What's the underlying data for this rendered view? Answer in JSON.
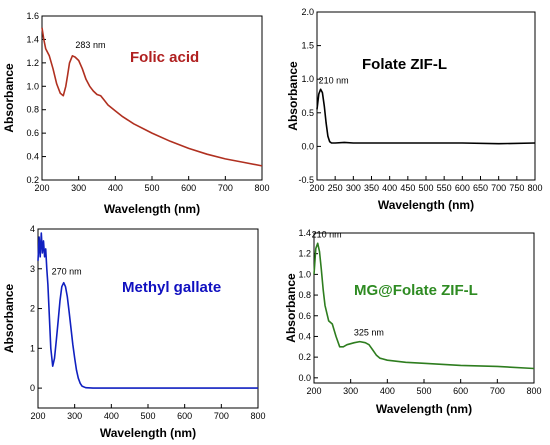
{
  "chart_data": [
    {
      "type": "line",
      "title": "Folic acid",
      "title_color": "#b02020",
      "xlabel": "Wavelength (nm)",
      "ylabel": "Absorbance",
      "xlim": [
        200,
        800
      ],
      "ylim": [
        0.2,
        1.6
      ],
      "xticks": [
        "200",
        "300",
        "400",
        "500",
        "600",
        "700",
        "800"
      ],
      "yticks": [
        "0.2",
        "0.4",
        "0.6",
        "0.8",
        "1.0",
        "1.2",
        "1.4",
        "1.6"
      ],
      "series": [
        {
          "color": "#b03020",
          "x": [
            200,
            205,
            210,
            220,
            230,
            240,
            250,
            258,
            265,
            270,
            275,
            283,
            290,
            300,
            310,
            320,
            330,
            340,
            350,
            360,
            370,
            380,
            400,
            420,
            450,
            500,
            550,
            600,
            650,
            700,
            750,
            800
          ],
          "y": [
            1.5,
            1.4,
            1.32,
            1.26,
            1.15,
            1.02,
            0.94,
            0.92,
            1.0,
            1.1,
            1.2,
            1.26,
            1.25,
            1.22,
            1.15,
            1.06,
            1.0,
            0.96,
            0.93,
            0.92,
            0.88,
            0.84,
            0.79,
            0.74,
            0.68,
            0.6,
            0.53,
            0.47,
            0.42,
            0.38,
            0.35,
            0.32
          ]
        }
      ],
      "annotations": [
        {
          "text": "283 nm",
          "x": 283,
          "y": 1.26
        }
      ]
    },
    {
      "type": "line",
      "title": "Folate ZIF-L",
      "title_color": "#000000",
      "xlabel": "Wavelength (nm)",
      "ylabel": "Absorbance",
      "xlim": [
        200,
        800
      ],
      "ylim": [
        -0.5,
        2.0
      ],
      "xticks": [
        "200",
        "250",
        "300",
        "350",
        "400",
        "450",
        "500",
        "550",
        "600",
        "650",
        "700",
        "750",
        "800"
      ],
      "yticks": [
        "-0.5",
        "0.0",
        "0.5",
        "1.0",
        "1.5",
        "2.0"
      ],
      "series": [
        {
          "color": "#000000",
          "x": [
            200,
            205,
            210,
            215,
            220,
            225,
            230,
            235,
            240,
            250,
            275,
            300,
            400,
            500,
            600,
            700,
            800
          ],
          "y": [
            0.55,
            0.78,
            0.85,
            0.8,
            0.6,
            0.35,
            0.15,
            0.07,
            0.05,
            0.05,
            0.06,
            0.05,
            0.05,
            0.05,
            0.05,
            0.04,
            0.05
          ]
        }
      ],
      "annotations": [
        {
          "text": "210 nm",
          "x": 210,
          "y": 0.85
        }
      ]
    },
    {
      "type": "line",
      "title": "Methyl gallate",
      "title_color": "#1010c0",
      "xlabel": "Wavelength (nm)",
      "ylabel": "Absorbance",
      "xlim": [
        200,
        800
      ],
      "ylim": [
        -0.5,
        4.0
      ],
      "xticks": [
        "200",
        "300",
        "400",
        "500",
        "600",
        "700",
        "800"
      ],
      "yticks": [
        "0",
        "1",
        "2",
        "3",
        "4"
      ],
      "series": [
        {
          "color": "#1020c0",
          "x": [
            200,
            203,
            206,
            209,
            212,
            215,
            218,
            221,
            224,
            227,
            230,
            235,
            240,
            245,
            250,
            255,
            260,
            265,
            270,
            275,
            280,
            285,
            290,
            295,
            300,
            305,
            310,
            315,
            320,
            330,
            350,
            400,
            500,
            600,
            700,
            800
          ],
          "y": [
            3.2,
            3.8,
            3.3,
            3.9,
            3.4,
            3.7,
            3.3,
            3.5,
            3.0,
            2.6,
            2.0,
            1.0,
            0.55,
            0.75,
            1.2,
            1.7,
            2.2,
            2.55,
            2.65,
            2.55,
            2.3,
            1.9,
            1.5,
            1.1,
            0.75,
            0.45,
            0.25,
            0.12,
            0.05,
            0.01,
            0.0,
            0.0,
            0.0,
            0.0,
            0.0,
            0.0
          ]
        }
      ],
      "annotations": [
        {
          "text": "270 nm",
          "x": 270,
          "y": 2.65
        }
      ]
    },
    {
      "type": "line",
      "title": "MG@Folate ZIF-L",
      "title_color": "#2e8b22",
      "xlabel": "Wavelength (nm)",
      "ylabel": "Absorbance",
      "xlim": [
        200,
        800
      ],
      "ylim": [
        -0.05,
        1.4
      ],
      "xticks": [
        "200",
        "300",
        "400",
        "500",
        "600",
        "700",
        "800"
      ],
      "yticks": [
        "0.0",
        "0.2",
        "0.4",
        "0.6",
        "0.8",
        "1.0",
        "1.2",
        "1.4"
      ],
      "series": [
        {
          "color": "#2e7d1f",
          "x": [
            200,
            205,
            210,
            215,
            220,
            225,
            230,
            240,
            250,
            260,
            270,
            280,
            290,
            300,
            310,
            325,
            340,
            350,
            360,
            370,
            380,
            400,
            450,
            500,
            600,
            700,
            800
          ],
          "y": [
            1.0,
            1.25,
            1.3,
            1.22,
            1.05,
            0.85,
            0.7,
            0.55,
            0.52,
            0.4,
            0.3,
            0.3,
            0.32,
            0.33,
            0.34,
            0.35,
            0.34,
            0.32,
            0.27,
            0.22,
            0.19,
            0.17,
            0.15,
            0.14,
            0.12,
            0.11,
            0.09
          ]
        }
      ],
      "annotations": [
        {
          "text": "210 nm",
          "x": 210,
          "y": 1.3
        },
        {
          "text": "325 nm",
          "x": 325,
          "y": 0.35
        }
      ]
    }
  ]
}
